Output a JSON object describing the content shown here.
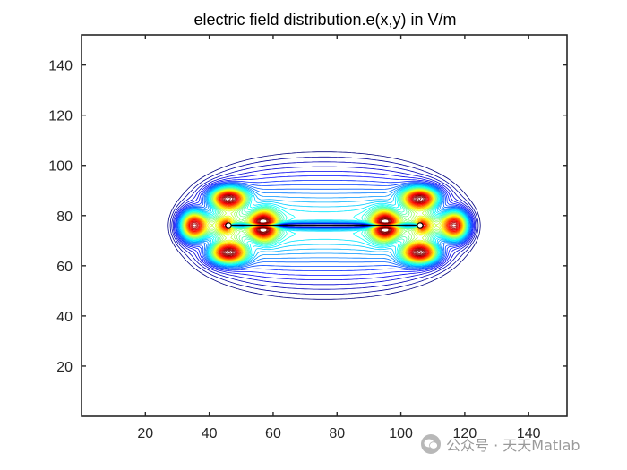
{
  "chart_data": {
    "type": "contour",
    "title": "electric field distribution.e(x,y) in V/m",
    "xlabel": "",
    "ylabel": "",
    "xlim": [
      0,
      152
    ],
    "ylim": [
      0,
      152
    ],
    "xticks": [
      20,
      40,
      60,
      80,
      100,
      120,
      140
    ],
    "yticks": [
      20,
      40,
      60,
      80,
      100,
      120,
      140
    ],
    "colormap": "jet",
    "plates": [
      {
        "name": "",
        "x_start": 46,
        "x_end": 106,
        "y": 76
      }
    ],
    "field_hotspots": [
      {
        "x": 46,
        "y": 76
      },
      {
        "x": 106,
        "y": 76
      }
    ],
    "grid": false,
    "box": true
  },
  "watermark": {
    "text": "公众号 · 天天Matlab",
    "icon": "wechat-icon"
  },
  "colors": {
    "axis": "#262626",
    "plate": "#000000",
    "contour_outer": "#00008f",
    "contour_hot": "#ff0000"
  }
}
